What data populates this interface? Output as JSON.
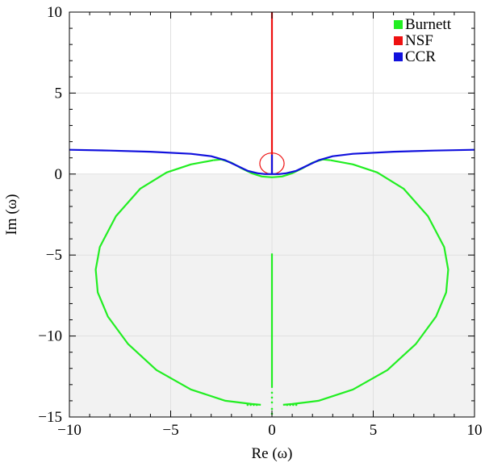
{
  "chart_data": {
    "type": "scatter",
    "title": "",
    "xlabel": "Re (ω)",
    "ylabel": "Im (ω)",
    "xlim": [
      -10,
      10
    ],
    "ylim": [
      -15,
      10
    ],
    "xticks": [
      -10,
      -5,
      0,
      5,
      10
    ],
    "yticks": [
      -15,
      -10,
      -5,
      0,
      5,
      10
    ],
    "grid": true,
    "shaded_region": {
      "y_from": -15,
      "y_to": 0,
      "color": "#f2f2f2"
    },
    "legend_position": "top-right",
    "series": [
      {
        "name": "Burnett",
        "color": "#22ee22",
        "curves": [
          {
            "kind": "line",
            "points": [
              [
                -2.9,
                0.85
              ],
              [
                -4.0,
                0.6
              ],
              [
                -5.2,
                0.1
              ],
              [
                -6.5,
                -0.9
              ],
              [
                -7.7,
                -2.6
              ],
              [
                -8.5,
                -4.5
              ],
              [
                -8.7,
                -5.9
              ],
              [
                -8.6,
                -7.3
              ],
              [
                -8.1,
                -8.8
              ],
              [
                -7.1,
                -10.5
              ],
              [
                -5.7,
                -12.1
              ],
              [
                -4.0,
                -13.3
              ],
              [
                -2.3,
                -14.0
              ],
              [
                -1.0,
                -14.2
              ],
              [
                -0.55,
                -14.25
              ]
            ]
          },
          {
            "kind": "line",
            "points": [
              [
                0.55,
                -14.25
              ],
              [
                1.0,
                -14.2
              ],
              [
                2.3,
                -14.0
              ],
              [
                4.0,
                -13.3
              ],
              [
                5.7,
                -12.1
              ],
              [
                7.1,
                -10.5
              ],
              [
                8.1,
                -8.8
              ],
              [
                8.6,
                -7.3
              ],
              [
                8.7,
                -5.9
              ],
              [
                8.5,
                -4.5
              ],
              [
                7.7,
                -2.6
              ],
              [
                6.5,
                -0.9
              ],
              [
                5.2,
                0.1
              ],
              [
                4.0,
                0.6
              ],
              [
                2.9,
                0.85
              ]
            ]
          },
          {
            "kind": "line",
            "points": [
              [
                -2.9,
                0.85
              ],
              [
                -2.5,
                0.9
              ],
              [
                -2.0,
                0.7
              ],
              [
                -1.5,
                0.35
              ],
              [
                -1.0,
                0.05
              ],
              [
                -0.5,
                -0.15
              ],
              [
                0,
                -0.2
              ],
              [
                0.5,
                -0.15
              ],
              [
                1.0,
                0.05
              ],
              [
                1.5,
                0.35
              ],
              [
                2.0,
                0.7
              ],
              [
                2.5,
                0.9
              ],
              [
                2.9,
                0.85
              ]
            ]
          },
          {
            "kind": "line",
            "points": [
              [
                0,
                -4.9
              ],
              [
                0,
                -13.2
              ]
            ]
          },
          {
            "kind": "dots",
            "points": [
              [
                -1.2,
                -14.25
              ],
              [
                -1.05,
                -14.25
              ],
              [
                -0.9,
                -14.25
              ],
              [
                -0.75,
                -14.25
              ],
              [
                0.75,
                -14.25
              ],
              [
                0.9,
                -14.25
              ],
              [
                1.05,
                -14.25
              ],
              [
                1.2,
                -14.25
              ],
              [
                0,
                -13.5
              ],
              [
                0,
                -13.8
              ],
              [
                0,
                -14.1
              ],
              [
                0,
                -14.5
              ],
              [
                0,
                -14.8
              ]
            ]
          }
        ]
      },
      {
        "name": "NSF",
        "color": "#ee1111",
        "curves": [
          {
            "kind": "line",
            "points": [
              [
                0,
                10
              ],
              [
                0,
                0
              ]
            ]
          },
          {
            "kind": "ellipse",
            "center": [
              0,
              0.65
            ],
            "rx": 0.6,
            "ry": 0.65
          }
        ]
      },
      {
        "name": "CCR",
        "color": "#1111dd",
        "curves": [
          {
            "kind": "line",
            "points": [
              [
                -10,
                1.5
              ],
              [
                -8,
                1.45
              ],
              [
                -6,
                1.38
              ],
              [
                -4,
                1.25
              ],
              [
                -3,
                1.1
              ],
              [
                -2.3,
                0.85
              ],
              [
                -1.7,
                0.5
              ],
              [
                -1.2,
                0.2
              ],
              [
                -0.7,
                0.05
              ],
              [
                -0.35,
                0.0
              ],
              [
                0,
                0.0
              ],
              [
                0.35,
                0.0
              ],
              [
                0.7,
                0.05
              ],
              [
                1.2,
                0.2
              ],
              [
                1.7,
                0.5
              ],
              [
                2.3,
                0.85
              ],
              [
                3,
                1.1
              ],
              [
                4,
                1.25
              ],
              [
                6,
                1.38
              ],
              [
                8,
                1.45
              ],
              [
                10,
                1.5
              ]
            ]
          },
          {
            "kind": "line",
            "points": [
              [
                0,
                1.2
              ],
              [
                0,
                0
              ]
            ]
          }
        ]
      }
    ]
  }
}
